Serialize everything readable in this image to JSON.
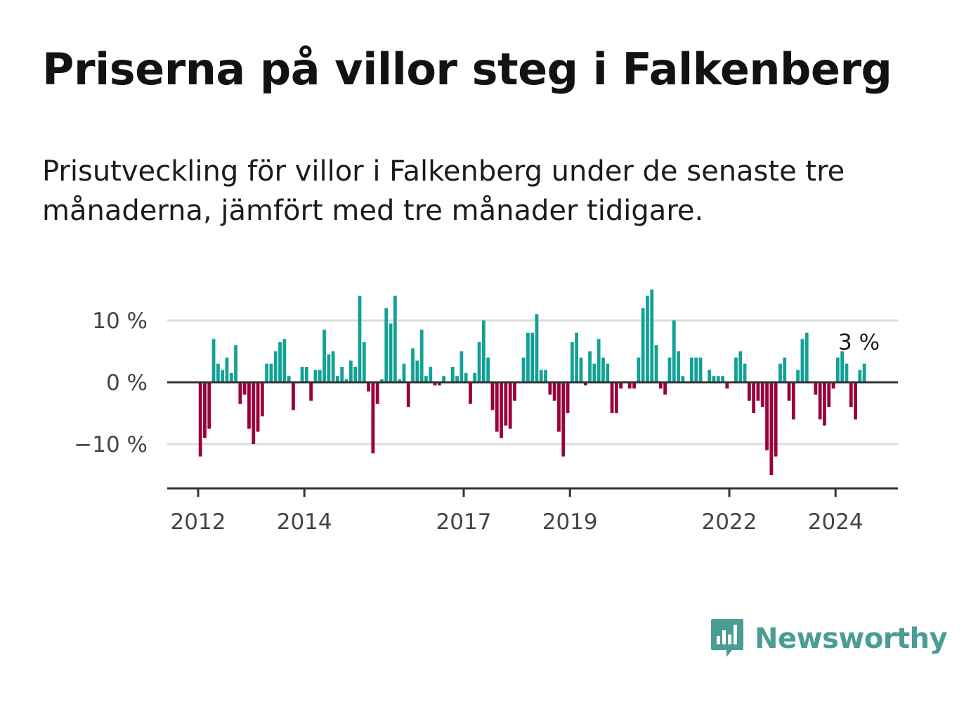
{
  "title": "Priserna på villor steg i Falkenberg",
  "subtitle": "Prisutveckling för villor i Falkenberg under de senaste tre månaderna, jämfört med tre månader tidigare.",
  "brand": {
    "name": "Newsworthy",
    "icon": "newsworthy-logo-icon"
  },
  "colors": {
    "positive": "#12a195",
    "negative": "#99003c",
    "grid": "#dddddd",
    "axis": "#333333"
  },
  "chart_data": {
    "type": "bar",
    "x_start": "2012-01",
    "x_end": "2024-07",
    "frequency": "monthly",
    "ylabel": "",
    "ylim": [
      -17,
      17
    ],
    "y_ticks": [
      {
        "value": 10,
        "label": "10 %"
      },
      {
        "value": 0,
        "label": "0 %"
      },
      {
        "value": -10,
        "label": "−10 %"
      }
    ],
    "x_ticks": [
      "2012",
      "2014",
      "2017",
      "2019",
      "2022",
      "2024"
    ],
    "annotation": {
      "text": "3 %",
      "value": 3
    },
    "values": [
      -12,
      -9,
      -7.5,
      7,
      3,
      2,
      4,
      1.5,
      6,
      -3.5,
      -2,
      -7.5,
      -10,
      -8,
      -5.5,
      3,
      3,
      5,
      6.5,
      7,
      1,
      -4.5,
      0,
      2.5,
      2.5,
      -3,
      2,
      2,
      8.5,
      4.5,
      5,
      1,
      2.5,
      0.5,
      3.5,
      2.5,
      14,
      6.5,
      -1.5,
      -11.5,
      -3.5,
      0.5,
      12,
      9.5,
      14,
      0.5,
      3,
      -4,
      5.5,
      3.5,
      8.5,
      1,
      2.5,
      -0.5,
      -0.5,
      1,
      0,
      2.5,
      1,
      5,
      1.5,
      -3.5,
      1.5,
      6.5,
      10,
      4,
      -4.5,
      -8,
      -9,
      -7,
      -7.5,
      -3,
      0,
      4,
      8,
      8,
      11,
      2,
      2,
      -2,
      -3,
      -8,
      -12,
      -5,
      6.5,
      8,
      4,
      -0.5,
      5,
      3,
      7,
      4,
      3,
      -5,
      -5,
      -1,
      0,
      -1,
      -1,
      4,
      12,
      14,
      15,
      6,
      -1,
      -2,
      4,
      10,
      5,
      1,
      0,
      4,
      4,
      4,
      0,
      2,
      1,
      1,
      1,
      -1,
      0,
      4,
      5,
      3,
      -3,
      -5,
      -3,
      -4,
      -11,
      -15,
      -12,
      3,
      4,
      -3,
      -6,
      2,
      7,
      8,
      0,
      -2,
      -6,
      -7,
      -4,
      -1,
      4,
      5,
      3,
      -4,
      -6,
      2,
      3
    ]
  }
}
